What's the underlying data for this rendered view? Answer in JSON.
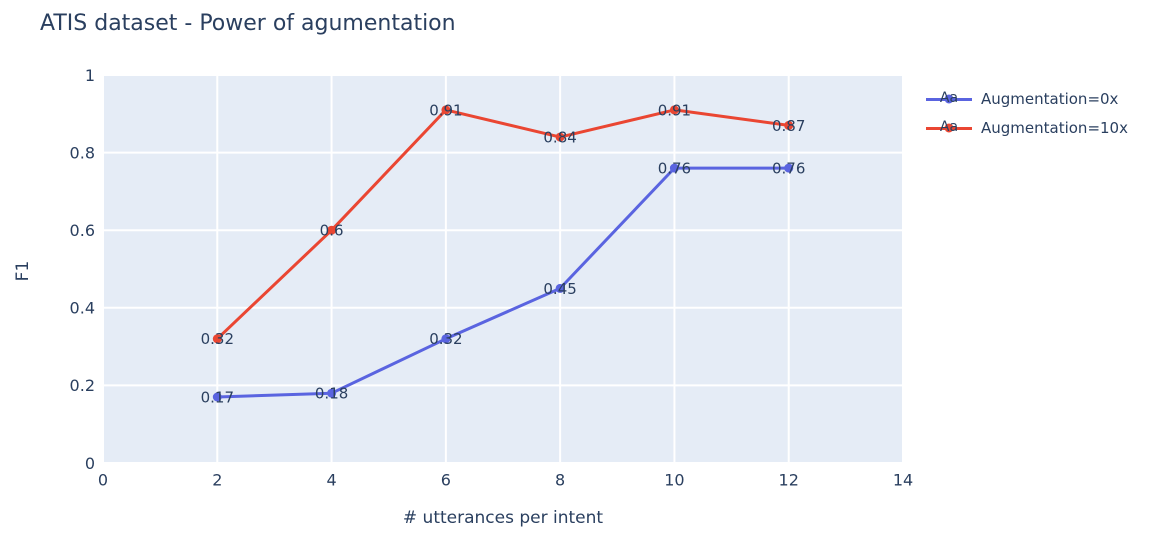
{
  "title": "ATIS dataset - Power of agumentation",
  "colors": {
    "background": "#ffffff",
    "plot_background": "#e5ecf6",
    "gridline": "#ffffff",
    "text": "#2a3f5f",
    "series_0x": "#5a64e0",
    "series_10x": "#ea4632"
  },
  "legend": {
    "sample_text": "Aa"
  },
  "chart_data": {
    "type": "line",
    "title": "ATIS dataset - Power of agumentation",
    "xlabel": "# utterances per intent",
    "ylabel": "F1",
    "xlim": [
      0,
      14
    ],
    "ylim": [
      0,
      1
    ],
    "xticks": [
      0,
      2,
      4,
      6,
      8,
      10,
      12,
      14
    ],
    "xtick_labels": [
      "0",
      "2",
      "4",
      "6",
      "8",
      "10",
      "12",
      "14"
    ],
    "yticks": [
      0,
      0.2,
      0.4,
      0.6,
      0.8,
      1
    ],
    "ytick_labels": [
      "0",
      "0.2",
      "0.4",
      "0.6",
      "0.8",
      "1"
    ],
    "grid": true,
    "legend_position": "outside-top-right",
    "x": [
      2,
      4,
      6,
      8,
      10,
      12
    ],
    "series": [
      {
        "name": "Augmentation=0x",
        "color": "#5a64e0",
        "values": [
          0.17,
          0.18,
          0.32,
          0.45,
          0.76,
          0.76
        ],
        "point_labels": [
          "0.17",
          "0.18",
          "0.32",
          "0.45",
          "0.76",
          "0.76"
        ],
        "legend_sample_text": "Aa"
      },
      {
        "name": "Augmentation=10x",
        "color": "#ea4632",
        "values": [
          0.32,
          0.6,
          0.91,
          0.84,
          0.91,
          0.87
        ],
        "point_labels": [
          "0.32",
          "0.6",
          "0.91",
          "0.84",
          "0.91",
          "0.87"
        ],
        "legend_sample_text": "Aa"
      }
    ]
  }
}
